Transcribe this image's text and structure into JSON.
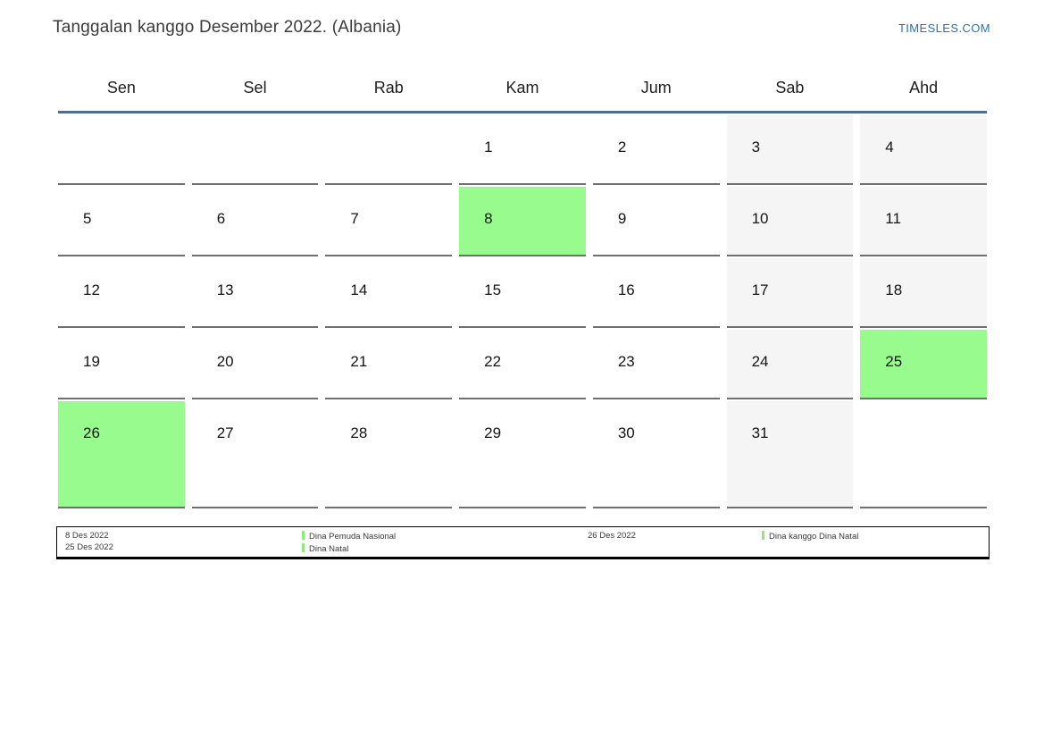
{
  "header": {
    "title": "Tanggalan kanggo Desember 2022. (Albania)",
    "site_link": "TIMESLES.COM"
  },
  "calendar": {
    "day_names": [
      "Sen",
      "Sel",
      "Rab",
      "Kam",
      "Jum",
      "Sab",
      "Ahd"
    ],
    "weeks": [
      [
        null,
        null,
        null,
        1,
        2,
        3,
        4
      ],
      [
        5,
        6,
        7,
        8,
        9,
        10,
        11
      ],
      [
        12,
        13,
        14,
        15,
        16,
        17,
        18
      ],
      [
        19,
        20,
        21,
        22,
        23,
        24,
        25
      ],
      [
        26,
        27,
        28,
        29,
        30,
        31,
        null
      ]
    ],
    "weekend_columns": [
      5,
      6
    ],
    "holiday_days": [
      8,
      25,
      26
    ]
  },
  "legend": {
    "groups": [
      {
        "dates": [
          "8 Des 2022",
          "25 Des 2022"
        ],
        "names": [
          "Dina Pemuda Nasional",
          "Dina Natal"
        ]
      },
      {
        "dates": [
          "26 Des 2022"
        ],
        "names": [
          "Dina kanggo Dina Natal"
        ]
      }
    ]
  },
  "colors": {
    "holiday_bg": "#98fb8e",
    "weekend_bg": "#f5f5f5",
    "header_rule": "#4c6e93",
    "brand_blue": "#2374bb",
    "legend_marker": "#8deb7d"
  }
}
